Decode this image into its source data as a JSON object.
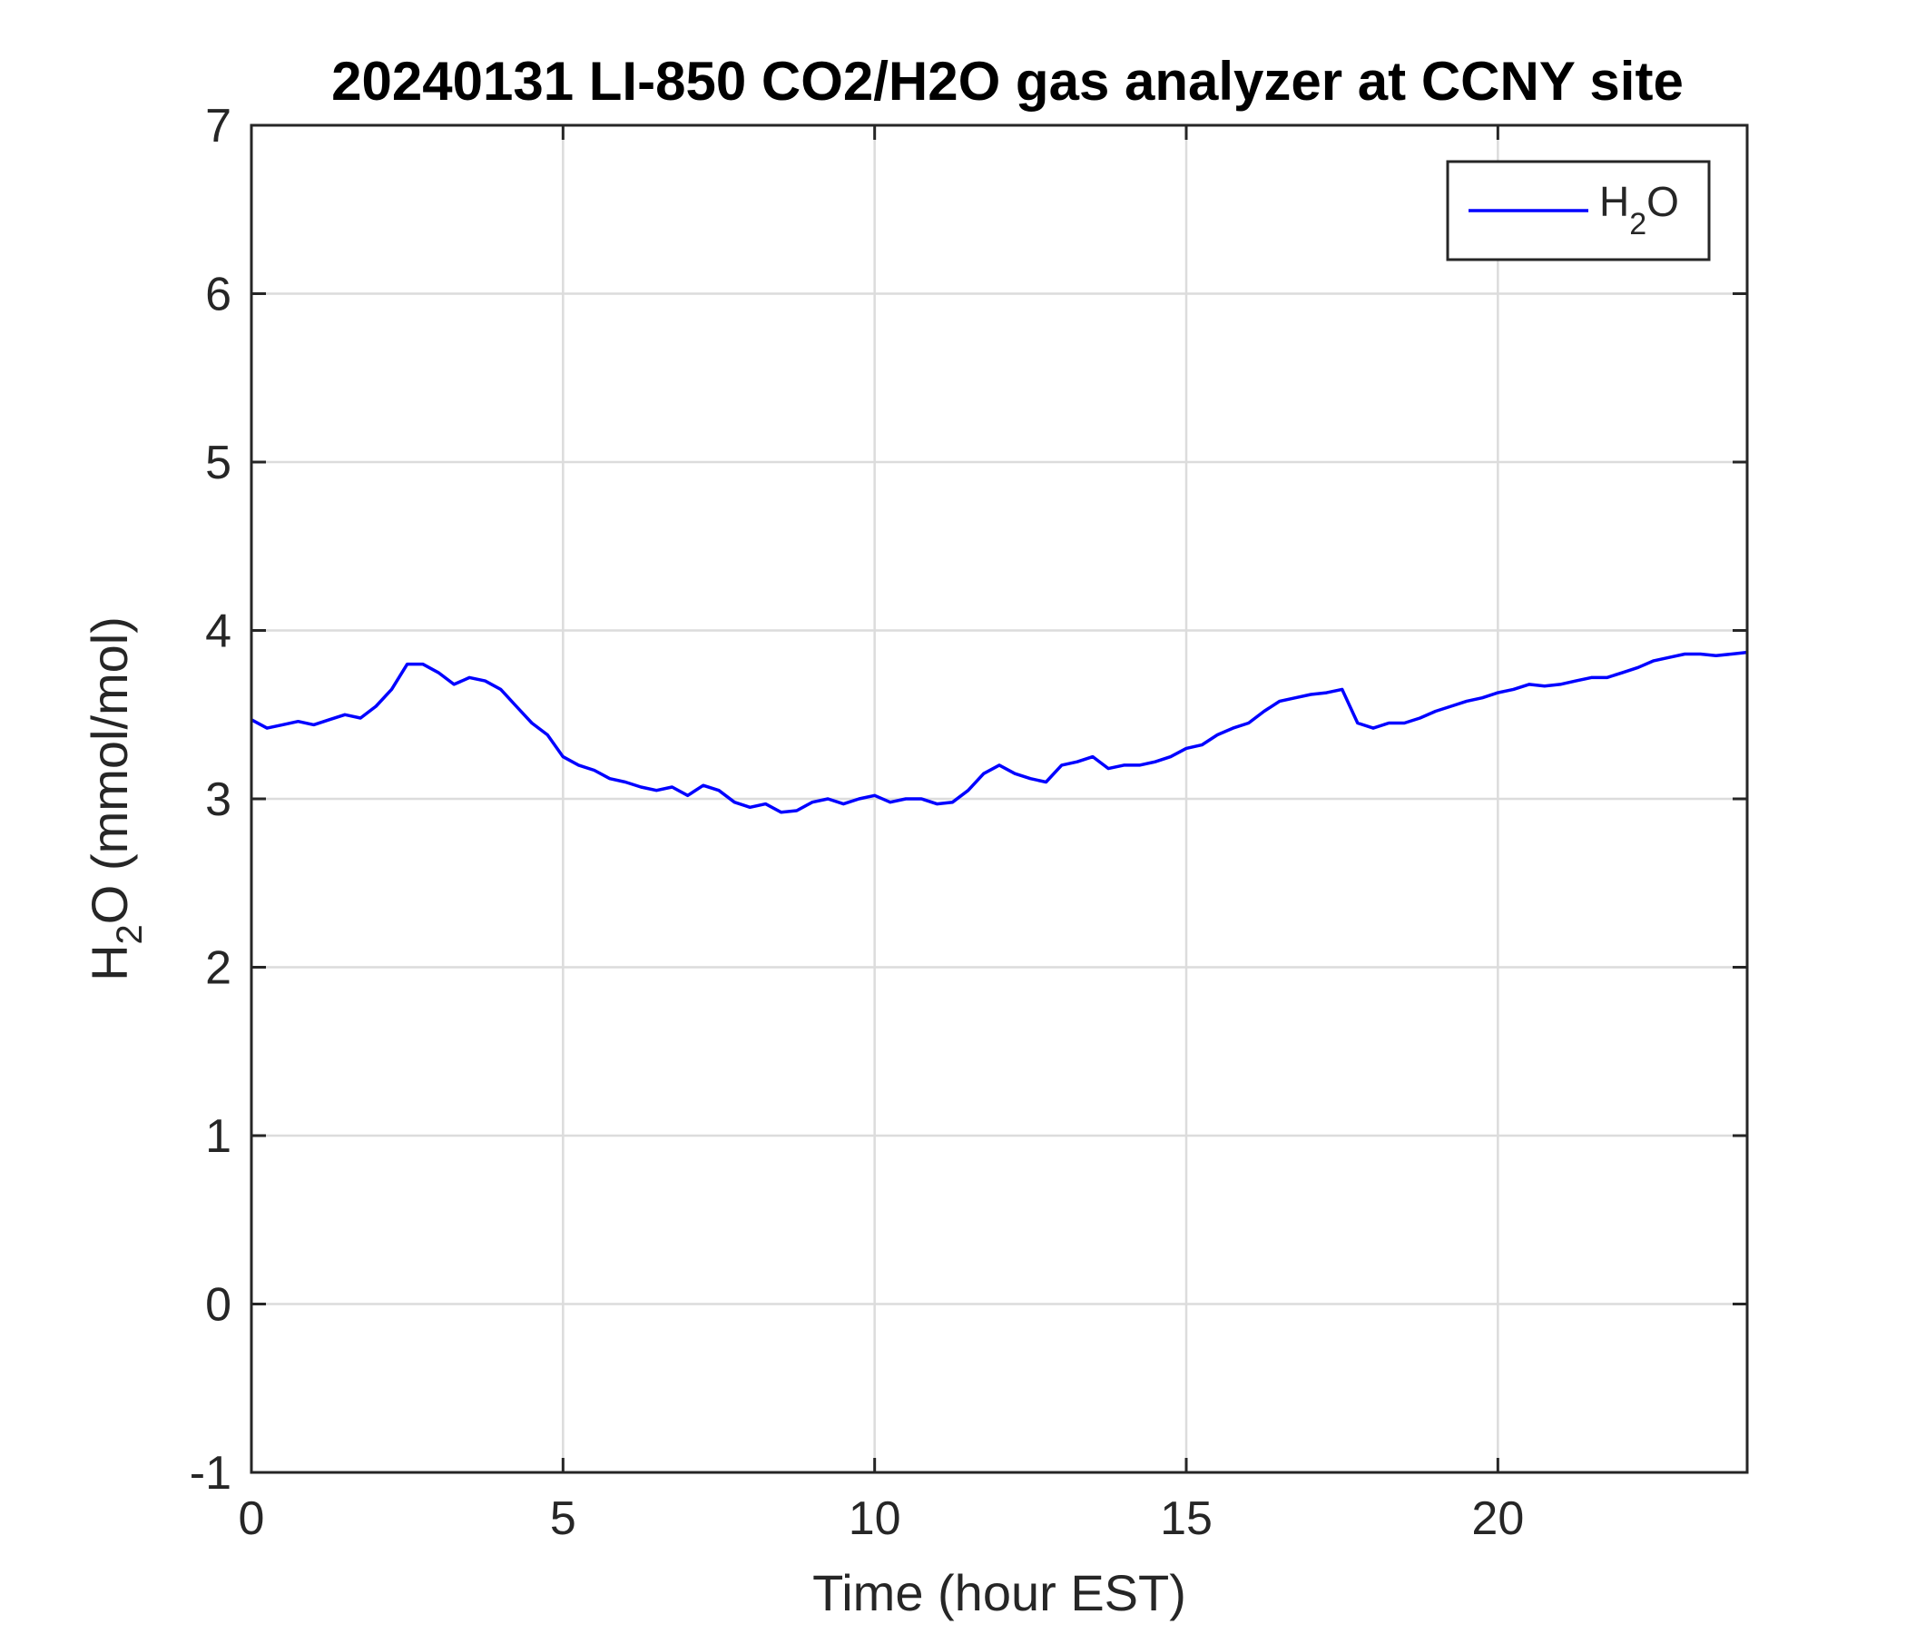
{
  "chart_data": {
    "type": "line",
    "title": "20240131 LI-850 CO2/H2O gas analyzer at CCNY site",
    "xlabel": "Time (hour EST)",
    "ylabel": {
      "pre": "H",
      "sub": "2",
      "post": "O (mmol/mol)"
    },
    "xlim": [
      0,
      24
    ],
    "ylim": [
      -1,
      7
    ],
    "xticks": [
      0,
      5,
      10,
      15,
      20
    ],
    "yticks": [
      -1,
      0,
      1,
      2,
      3,
      4,
      5,
      6,
      7
    ],
    "xtick_labels": [
      "0",
      "5",
      "10",
      "15",
      "20"
    ],
    "ytick_labels": [
      "-1",
      "0",
      "1",
      "2",
      "3",
      "4",
      "5",
      "6",
      "7"
    ],
    "grid": true,
    "legend_position": "top-right",
    "series": [
      {
        "name": {
          "pre": "H",
          "sub": "2",
          "post": "O"
        },
        "color": "#0000ff",
        "x": [
          0,
          0.25,
          0.5,
          0.75,
          1.0,
          1.25,
          1.5,
          1.75,
          2.0,
          2.25,
          2.5,
          2.75,
          3.0,
          3.25,
          3.5,
          3.75,
          4.0,
          4.25,
          4.5,
          4.75,
          5.0,
          5.25,
          5.5,
          5.75,
          6.0,
          6.25,
          6.5,
          6.75,
          7.0,
          7.25,
          7.5,
          7.75,
          8.0,
          8.25,
          8.5,
          8.75,
          9.0,
          9.25,
          9.5,
          9.75,
          10.0,
          10.25,
          10.5,
          10.75,
          11.0,
          11.25,
          11.5,
          11.75,
          12.0,
          12.25,
          12.5,
          12.75,
          13.0,
          13.25,
          13.5,
          13.75,
          14.0,
          14.25,
          14.5,
          14.75,
          15.0,
          15.25,
          15.5,
          15.75,
          16.0,
          16.25,
          16.5,
          16.75,
          17.0,
          17.25,
          17.5,
          17.75,
          18.0,
          18.25,
          18.5,
          18.75,
          19.0,
          19.25,
          19.5,
          19.75,
          20.0,
          20.25,
          20.5,
          20.75,
          21.0,
          21.25,
          21.5,
          21.75,
          22.0,
          22.25,
          22.5,
          22.75,
          23.0,
          23.25,
          23.5,
          23.75,
          24.0
        ],
        "y": [
          3.47,
          3.42,
          3.44,
          3.46,
          3.44,
          3.47,
          3.5,
          3.48,
          3.55,
          3.65,
          3.8,
          3.8,
          3.75,
          3.68,
          3.72,
          3.7,
          3.65,
          3.55,
          3.45,
          3.38,
          3.25,
          3.2,
          3.17,
          3.12,
          3.1,
          3.07,
          3.05,
          3.07,
          3.02,
          3.08,
          3.05,
          2.98,
          2.95,
          2.97,
          2.92,
          2.93,
          2.98,
          3.0,
          2.97,
          3.0,
          3.02,
          2.98,
          3.0,
          3.0,
          2.97,
          2.98,
          3.05,
          3.15,
          3.2,
          3.15,
          3.12,
          3.1,
          3.2,
          3.22,
          3.25,
          3.18,
          3.2,
          3.2,
          3.22,
          3.25,
          3.3,
          3.32,
          3.38,
          3.42,
          3.45,
          3.52,
          3.58,
          3.6,
          3.62,
          3.63,
          3.65,
          3.45,
          3.42,
          3.45,
          3.45,
          3.48,
          3.52,
          3.55,
          3.58,
          3.6,
          3.63,
          3.65,
          3.68,
          3.67,
          3.68,
          3.7,
          3.72,
          3.72,
          3.75,
          3.78,
          3.82,
          3.84,
          3.86,
          3.86,
          3.85,
          3.86,
          3.87
        ]
      }
    ]
  }
}
